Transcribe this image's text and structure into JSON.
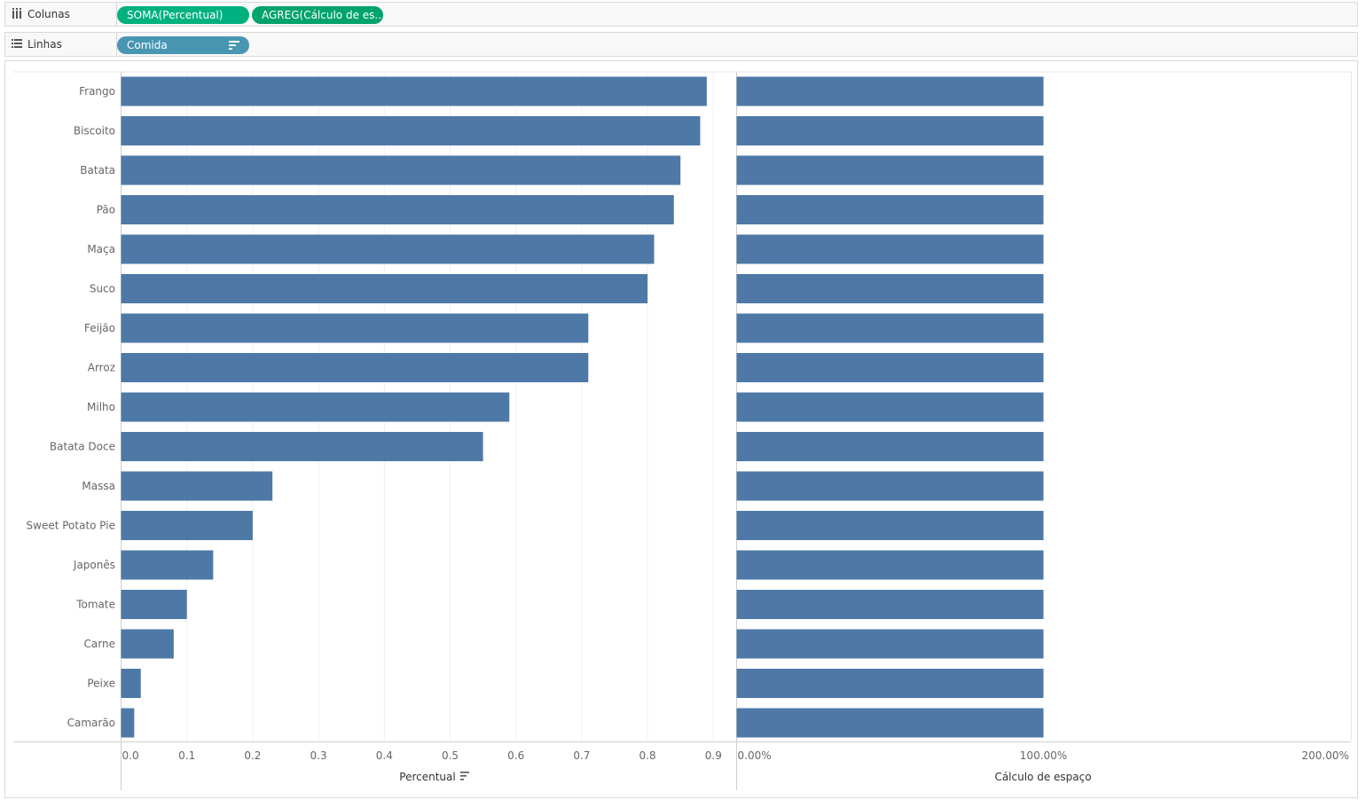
{
  "shelves": {
    "columns": {
      "title": "Colunas",
      "icon": "columns-icon",
      "pills": [
        {
          "label": "SOMA(Percentual)",
          "color": "#00b180"
        },
        {
          "label": "AGREG(Cálculo de es..",
          "color": "#00a36c"
        }
      ]
    },
    "rows": {
      "title": "Linhas",
      "icon": "rows-list-icon",
      "pills": [
        {
          "label": "Comida",
          "color": "#4996b2",
          "icon": "sort-descending-icon"
        }
      ]
    }
  },
  "chart_data": [
    {
      "type": "bar",
      "orientation": "horizontal",
      "categories": [
        "Frango",
        "Biscoito",
        "Batata",
        "Pão",
        "Maça",
        "Suco",
        "Feijão",
        "Arroz",
        "Milho",
        "Batata Doce",
        "Massa",
        "Sweet Potato Pie",
        "Japonês",
        "Tomate",
        "Carne",
        "Peixe",
        "Camarão"
      ],
      "values": [
        0.89,
        0.88,
        0.85,
        0.84,
        0.81,
        0.8,
        0.71,
        0.71,
        0.59,
        0.55,
        0.23,
        0.2,
        0.14,
        0.1,
        0.08,
        0.03,
        0.02
      ],
      "xlabel": "Percentual",
      "xlabel_icon": "sort-descending-icon",
      "xlim": [
        0,
        0.9
      ],
      "ticks": [
        "0.0",
        "0.1",
        "0.2",
        "0.3",
        "0.4",
        "0.5",
        "0.6",
        "0.7",
        "0.8",
        "0.9"
      ],
      "grid": true,
      "bar_color": "#4e79a7"
    },
    {
      "type": "bar",
      "orientation": "horizontal",
      "categories": [
        "Frango",
        "Biscoito",
        "Batata",
        "Pão",
        "Maça",
        "Suco",
        "Feijão",
        "Arroz",
        "Milho",
        "Batata Doce",
        "Massa",
        "Sweet Potato Pie",
        "Japonês",
        "Tomate",
        "Carne",
        "Peixe",
        "Camarão"
      ],
      "values": [
        1,
        1,
        1,
        1,
        1,
        1,
        1,
        1,
        1,
        1,
        1,
        1,
        1,
        1,
        1,
        1,
        1
      ],
      "xlabel": "Cálculo de espaço",
      "xlim": [
        0,
        2
      ],
      "ticks": [
        "0.00%",
        "100.00%",
        "200.00%"
      ],
      "grid": false,
      "bar_color": "#4e79a7"
    }
  ]
}
